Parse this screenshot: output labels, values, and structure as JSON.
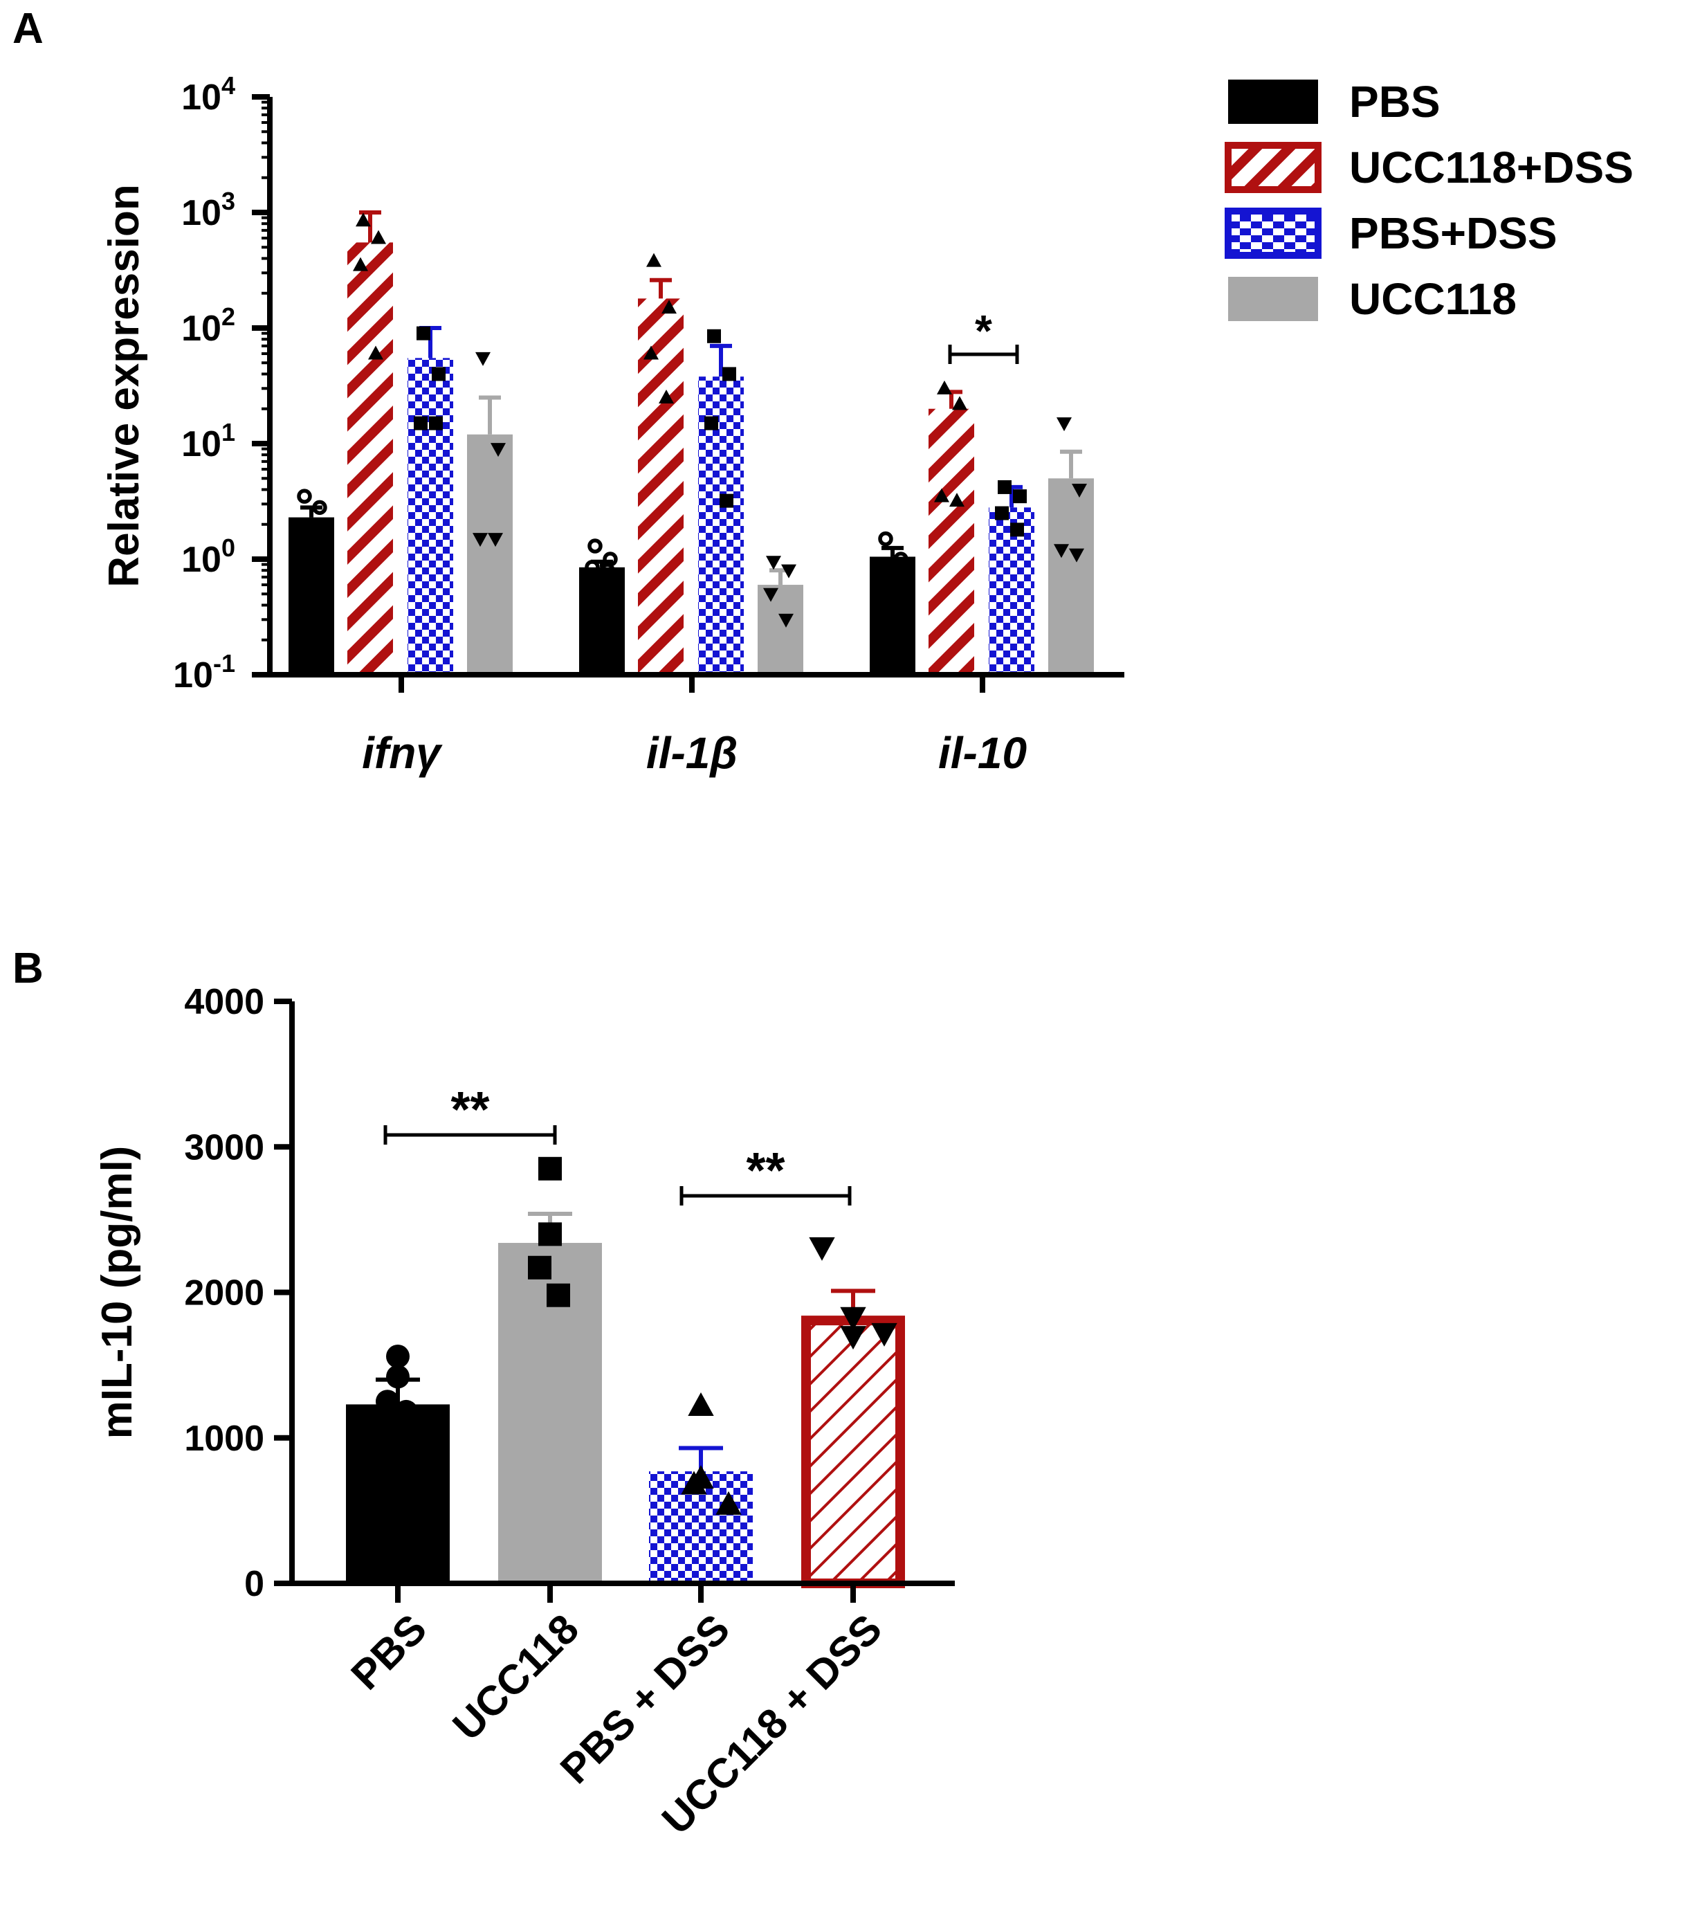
{
  "figure": {
    "panel_a_label": "A",
    "panel_b_label": "B"
  },
  "legend": [
    {
      "label": "PBS",
      "color": "#000000",
      "pattern": "solid"
    },
    {
      "label": "UCC118+DSS",
      "color": "#b01010",
      "pattern": "diagonal-stripes"
    },
    {
      "label": "PBS+DSS",
      "color": "#1414d2",
      "pattern": "checker"
    },
    {
      "label": "UCC118",
      "color": "#a8a8a8",
      "pattern": "solid"
    }
  ],
  "chart_data": [
    {
      "panel": "A",
      "type": "bar",
      "yscale": "log",
      "ylabel": "Relative expression",
      "ylim": [
        0.1,
        10000
      ],
      "yticks": [
        {
          "base": "10",
          "exp": "-1"
        },
        {
          "base": "10",
          "exp": "0"
        },
        {
          "base": "10",
          "exp": "1"
        },
        {
          "base": "10",
          "exp": "2"
        },
        {
          "base": "10",
          "exp": "3"
        },
        {
          "base": "10",
          "exp": "4"
        }
      ],
      "categories": [
        "ifnγ",
        "il-1β",
        "il-10"
      ],
      "series": [
        {
          "name": "PBS",
          "color": "#000000",
          "pattern": "solid",
          "marker": "circle-open",
          "values": [
            2.3,
            0.85,
            1.05
          ],
          "errors": [
            2.8,
            0.95,
            1.25
          ],
          "points": [
            [
              3.5,
              2.8,
              1.5,
              1.2
            ],
            [
              1.3,
              1.0,
              0.85,
              0.8
            ],
            [
              1.5,
              1.0,
              0.7,
              0.4
            ]
          ]
        },
        {
          "name": "UCC118+DSS",
          "color": "#b01010",
          "pattern": "diagonal-stripes",
          "marker": "triangle-up",
          "values": [
            550,
            180,
            20
          ],
          "errors": [
            1000,
            260,
            28
          ],
          "points": [
            [
              850,
              600,
              350,
              60
            ],
            [
              380,
              150,
              60,
              25
            ],
            [
              30,
              22,
              3.5,
              3.2
            ]
          ]
        },
        {
          "name": "PBS+DSS",
          "color": "#1414d2",
          "pattern": "checker",
          "marker": "square",
          "values": [
            55,
            38,
            2.8
          ],
          "errors": [
            100,
            70,
            4.2
          ],
          "points": [
            [
              90,
              40,
              15,
              15
            ],
            [
              85,
              40,
              15,
              3.2
            ],
            [
              4.2,
              3.5,
              2.5,
              1.8
            ]
          ]
        },
        {
          "name": "UCC118",
          "color": "#a8a8a8",
          "pattern": "solid",
          "marker": "triangle-down",
          "values": [
            12,
            0.6,
            5
          ],
          "errors": [
            25,
            0.8,
            8.5
          ],
          "points": [
            [
              55,
              9,
              1.5,
              1.5
            ],
            [
              0.95,
              0.8,
              0.5,
              0.3
            ],
            [
              15,
              4,
              1.2,
              1.1
            ]
          ]
        }
      ],
      "significance": [
        {
          "category": "il-10",
          "from": "UCC118+DSS",
          "to": "PBS+DSS",
          "label": "*"
        }
      ]
    },
    {
      "panel": "B",
      "type": "bar",
      "ylabel": "mIL-10 (pg/ml)",
      "ylim": [
        0,
        4000
      ],
      "yticks": [
        "0",
        "1000",
        "2000",
        "3000",
        "4000"
      ],
      "categories": [
        "PBS",
        "UCC118",
        "PBS + DSS",
        "UCC118 + DSS"
      ],
      "bars": [
        {
          "label": "PBS",
          "value": 1230,
          "error": 1400,
          "color": "#000000",
          "pattern": "solid",
          "marker": "circle",
          "points": [
            1560,
            1420,
            1250,
            1180
          ]
        },
        {
          "label": "UCC118",
          "value": 2340,
          "error": 2540,
          "color": "#a8a8a8",
          "pattern": "solid",
          "marker": "square",
          "points": [
            2850,
            2400,
            2170,
            1980
          ]
        },
        {
          "label": "PBS + DSS",
          "value": 770,
          "error": 930,
          "color": "#1414d2",
          "pattern": "checker",
          "marker": "triangle-up",
          "points": [
            1220,
            720,
            680,
            540
          ]
        },
        {
          "label": "UCC118 + DSS",
          "value": 1840,
          "error": 2010,
          "color": "#b01010",
          "pattern": "diagonal-stripes-outline",
          "marker": "triangle-down",
          "points": [
            2310,
            1830,
            1720,
            1700
          ]
        }
      ],
      "significance": [
        {
          "from": "PBS",
          "to": "UCC118",
          "label": "**"
        },
        {
          "from": "PBS + DSS",
          "to": "UCC118 + DSS",
          "label": "**"
        }
      ]
    }
  ]
}
